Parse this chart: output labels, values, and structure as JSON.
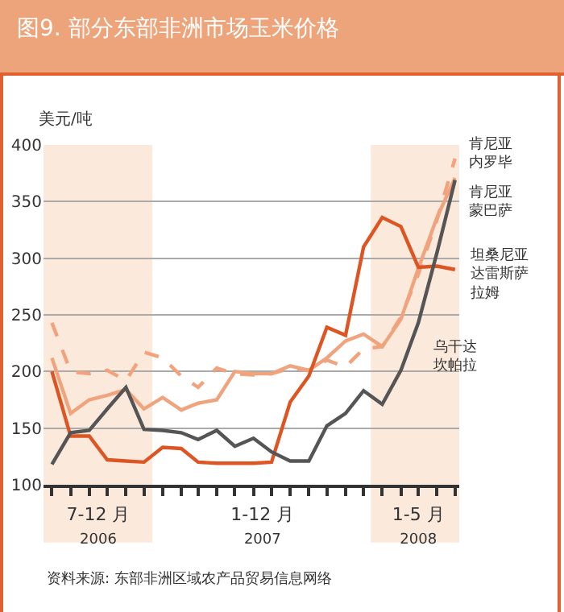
{
  "chart_data": {
    "type": "line",
    "title": "图9. 部分东部非洲市场玉米价格",
    "ylabel": "美元/吨",
    "x": [
      "2006-07",
      "2006-08",
      "2006-09",
      "2006-10",
      "2006-11",
      "2006-12",
      "2007-01",
      "2007-02",
      "2007-03",
      "2007-04",
      "2007-05",
      "2007-06",
      "2007-07",
      "2007-08",
      "2007-09",
      "2007-10",
      "2007-11",
      "2007-12",
      "2008-01",
      "2008-02",
      "2008-03",
      "2008-04",
      "2008-05"
    ],
    "series": [
      {
        "name": "肯尼亚内罗毕",
        "color": "#f2a27c",
        "line_style": "dashed",
        "values": [
          243,
          200,
          198,
          201,
          192,
          217,
          212,
          196,
          186,
          203,
          198,
          197,
          198,
          203,
          201,
          210,
          204,
          220,
          222,
          248,
          286,
          334,
          388
        ]
      },
      {
        "name": "肯尼亚蒙巴萨",
        "color": "#efa47e",
        "values": [
          212,
          163,
          175,
          179,
          184,
          167,
          177,
          166,
          172,
          175,
          200,
          198,
          198,
          205,
          201,
          212,
          227,
          233,
          222,
          246,
          291,
          336,
          371
        ]
      },
      {
        "name": "坦桑尼亚达雷斯萨拉姆",
        "color": "#dd5522",
        "values": [
          200,
          143,
          143,
          122,
          121,
          120,
          133,
          132,
          120,
          119,
          119,
          119,
          120,
          173,
          196,
          239,
          232,
          310,
          336,
          328,
          292,
          293,
          290
        ]
      },
      {
        "name": "乌干达坎帕拉",
        "color": "#555555",
        "values": [
          118,
          146,
          148,
          167,
          186,
          149,
          148,
          146,
          140,
          148,
          134,
          141,
          129,
          121,
          121,
          152,
          163,
          183,
          171,
          201,
          243,
          305,
          369
        ]
      }
    ],
    "xlim": [
      "2006-06-17",
      "2008-05-08"
    ],
    "xticks": [
      {
        "value": "2006-07",
        "label": null
      },
      {
        "value": "2006-08",
        "label": null
      },
      {
        "value": "2006-09",
        "label": null
      },
      {
        "value": "2006-09-16",
        "label": "7-12 月\n2006"
      },
      {
        "value": "2006-10",
        "label": null
      },
      {
        "value": "2006-11",
        "label": null
      },
      {
        "value": "2006-12",
        "label": null
      },
      {
        "value": "2007-01",
        "label": null
      },
      {
        "value": "2007-02",
        "label": null
      },
      {
        "value": "2007-03",
        "label": null
      },
      {
        "value": "2007-04",
        "label": null
      },
      {
        "value": "2007-05",
        "label": null
      },
      {
        "value": "2007-06",
        "label": null
      },
      {
        "value": "2007-06-16",
        "label": "1-12 月\n2007"
      },
      {
        "value": "2007-07",
        "label": null
      },
      {
        "value": "2007-08",
        "label": null
      },
      {
        "value": "2007-09",
        "label": null
      },
      {
        "value": "2007-10",
        "label": null
      },
      {
        "value": "2007-11",
        "label": null
      },
      {
        "value": "2007-12",
        "label": null
      },
      {
        "value": "2008-01",
        "label": null
      },
      {
        "value": "2008-02",
        "label": null
      },
      {
        "value": "2008-03",
        "label": null
      },
      {
        "value": "2008-03-01",
        "label": "1-5 月\n2008"
      },
      {
        "value": "2008-04",
        "label": null
      },
      {
        "value": "2008-05",
        "label": null
      }
    ],
    "ylim": [
      100,
      400
    ],
    "yticks": [
      100,
      150,
      200,
      250,
      300,
      350,
      400
    ],
    "grid": "y",
    "legend": false,
    "marker": "none",
    "bands": [
      {
        "axis": "x",
        "from": "2006-06-17",
        "to": "2006-12-15",
        "color": "#fbe9dc"
      },
      {
        "axis": "x",
        "from": "2007-12-13",
        "to": "2008-05-13",
        "color": "#fbe9dc"
      }
    ],
    "annotations": [
      "资料来源: 东部非洲区域农产品贸易信息网络"
    ]
  }
}
